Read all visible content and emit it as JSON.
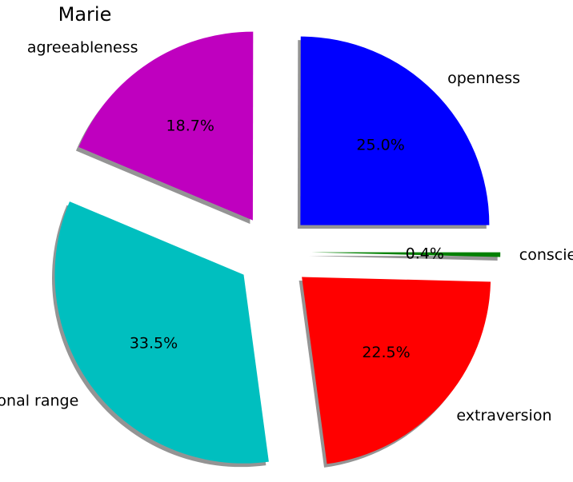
{
  "chart_data": {
    "type": "pie",
    "title": "Marie",
    "categories": [
      "openness",
      "agreeableness",
      "emotional range",
      "extraversion",
      "conscientiousness"
    ],
    "values": [
      25.0,
      18.7,
      33.5,
      22.5,
      0.4
    ],
    "value_labels": [
      "25.0%",
      "18.7%",
      "33.5%",
      "22.5%",
      "0.4%"
    ],
    "colors": [
      "#0000ff",
      "#bf00bf",
      "#00bfbf",
      "#ff0000",
      "#008000"
    ],
    "start_angle_deg": 0,
    "direction": "counterclockwise",
    "exploded": true,
    "shadow": true,
    "legend": "none"
  }
}
